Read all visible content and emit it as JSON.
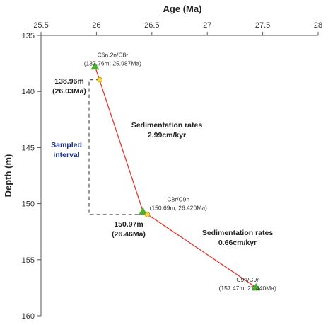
{
  "chart_data": {
    "type": "line",
    "xlabel": "Age (Ma)",
    "ylabel": "Depth (m)",
    "xlim": [
      25.5,
      28
    ],
    "ylim": [
      135,
      160
    ],
    "y_inverted": true,
    "x_axis_position": "top",
    "x_ticks": [
      "25.5",
      "26",
      "26.5",
      "27",
      "27.5",
      "28"
    ],
    "y_ticks": [
      "135",
      "140",
      "145",
      "150",
      "155",
      "160"
    ],
    "grid": false,
    "series": [
      {
        "x": [
          25.987,
          26.42,
          27.44
        ],
        "y": [
          137.76,
          150.69,
          157.47
        ],
        "color": "#e03a2e"
      }
    ],
    "tie_points": [
      {
        "x": 25.987,
        "y": 137.76,
        "name": "C6n.2n/C8r",
        "coords": "(137.76m; 25.987Ma)"
      },
      {
        "x": 26.42,
        "y": 150.69,
        "name": "C8r/C9n",
        "coords": "(150.69m; 26.420Ma)"
      },
      {
        "x": 27.44,
        "y": 157.47,
        "name": "C9n/C9r",
        "coords": "(157.47m; 27.440Ma)"
      }
    ],
    "sample_points": [
      {
        "x": 26.03,
        "y": 138.96,
        "depth_label": "138.96m",
        "age_label": "(26.03Ma)"
      },
      {
        "x": 26.46,
        "y": 150.97,
        "depth_label": "150.97m",
        "age_label": "(26.46Ma)"
      }
    ],
    "sampled_interval": {
      "line1": "Sampled",
      "line2": "interval"
    },
    "rate_annotations": [
      {
        "line1": "Sedimentation rates",
        "line2": "2.99cm/kyr"
      },
      {
        "line1": "Sedimentation rates",
        "line2": "0.66cm/kyr"
      }
    ],
    "colors": {
      "line": "#e03a2e",
      "tie_marker": "#4caf30",
      "sample_marker": "#f5dc3c",
      "interval_text": "#1a2f8a"
    }
  }
}
